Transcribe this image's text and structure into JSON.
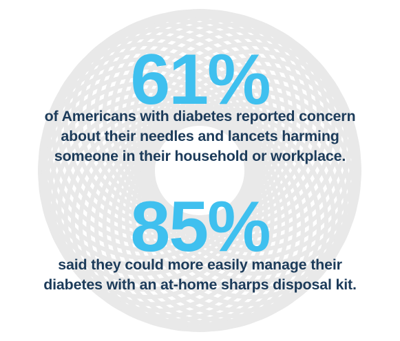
{
  "colors": {
    "accent": "#3fc0ef",
    "text": "#1c3b5a",
    "pattern": "#e9e9e9",
    "background": "#ffffff"
  },
  "stat_1": {
    "value": "61%",
    "caption_lines": [
      "of Americans with diabetes reported concern",
      "about their needles and lancets harming",
      "someone in their household or workplace."
    ]
  },
  "stat_2": {
    "value": "85%",
    "caption_lines": [
      "said they could more easily manage their",
      "diabetes with an at-home sharps disposal kit."
    ]
  }
}
